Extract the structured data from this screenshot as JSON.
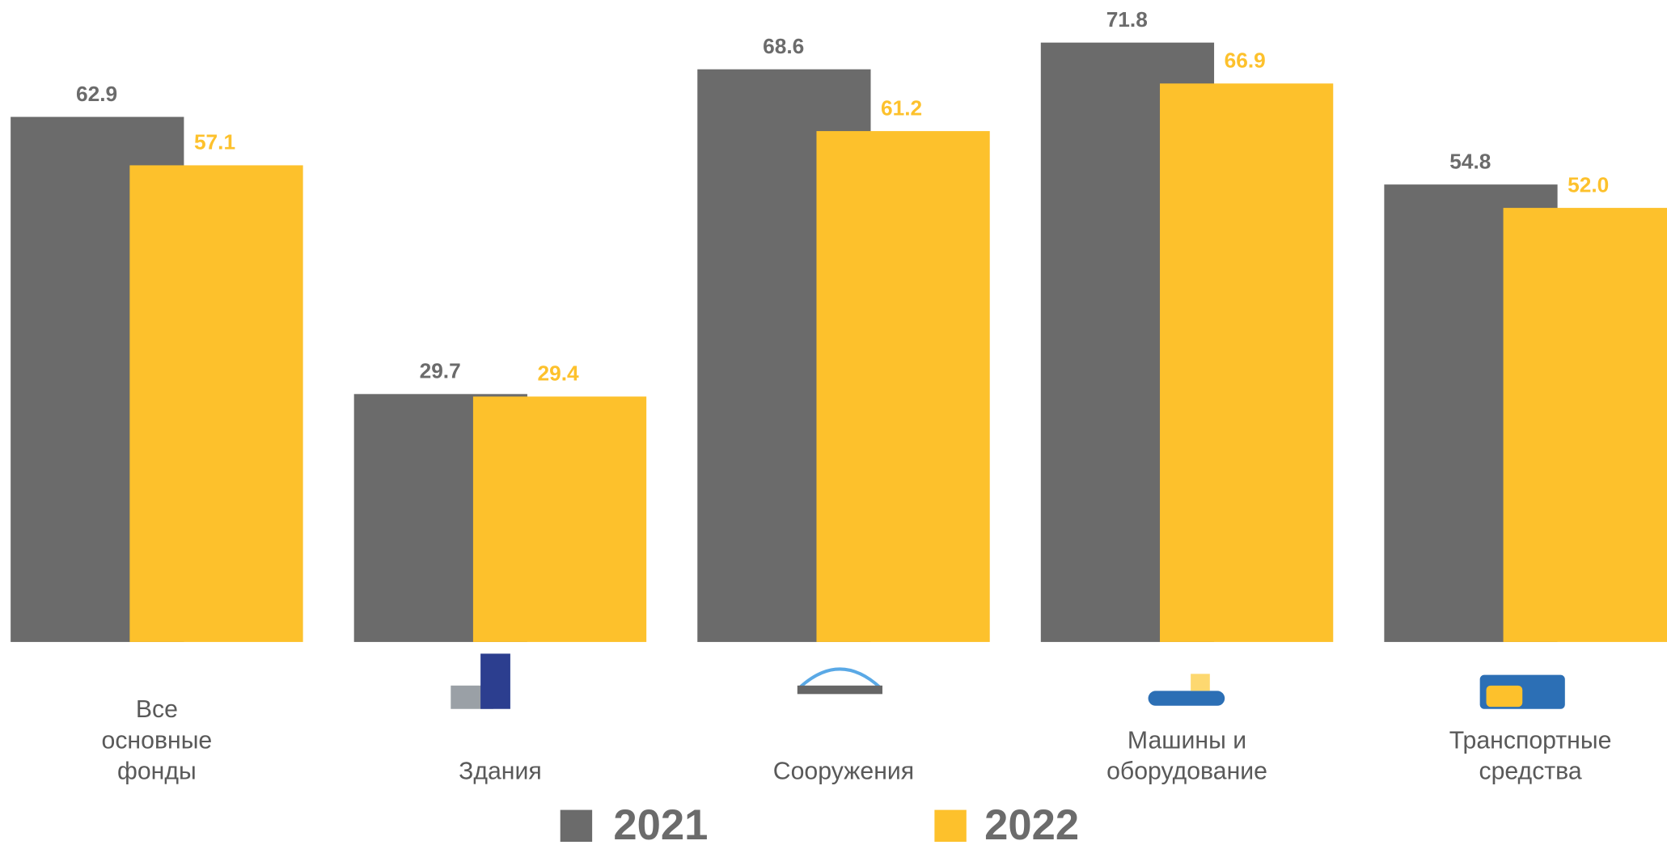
{
  "chart_data": {
    "type": "bar",
    "categories": [
      "Все\nосновные\nфонды",
      "Здания",
      "Сооружения",
      "Машины и\nоборудование",
      "Транспортные\nсредства"
    ],
    "series": [
      {
        "name": "2021",
        "color": "#6b6b6b",
        "values": [
          62.9,
          29.7,
          68.6,
          71.8,
          54.8
        ],
        "value_labels": [
          "62.9",
          "29.7",
          "68.6",
          "71.8",
          "54.8"
        ]
      },
      {
        "name": "2022",
        "color": "#fdc12c",
        "values": [
          57.1,
          29.4,
          61.2,
          66.9,
          52.0
        ],
        "value_labels": [
          "57.1",
          "29.4",
          "61.2",
          "66.9",
          "52.0"
        ]
      }
    ],
    "ylim": [
      0,
      76.9
    ]
  }
}
